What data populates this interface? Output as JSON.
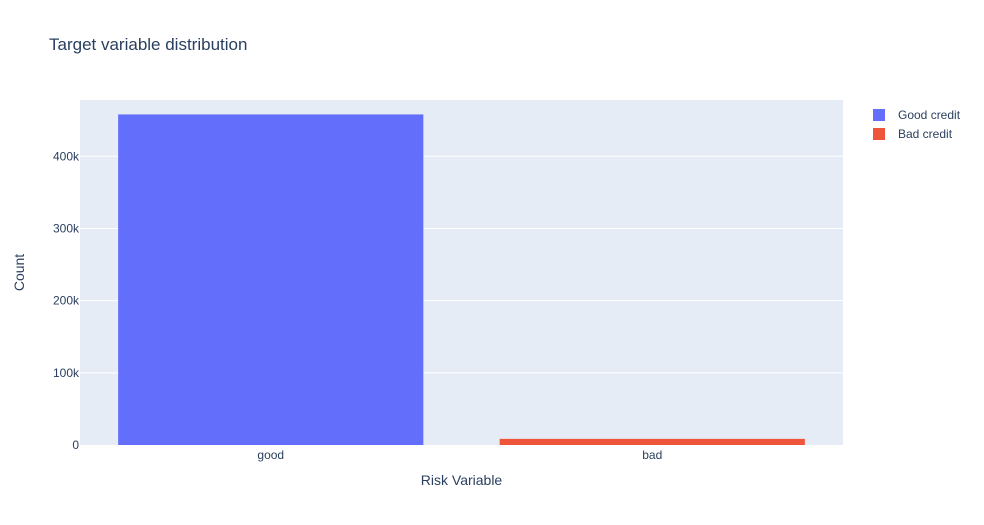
{
  "chart_data": {
    "type": "bar",
    "title": "Target variable distribution",
    "xlabel": "Risk Variable",
    "ylabel": "Count",
    "categories": [
      "good",
      "bad"
    ],
    "series": [
      {
        "name": "Good credit",
        "category": "good",
        "value": 458000,
        "color": "#636efa"
      },
      {
        "name": "Bad credit",
        "category": "bad",
        "value": 8500,
        "color": "#ef553b"
      }
    ],
    "ylim": [
      0,
      478000
    ],
    "yticks": [
      {
        "value": 0,
        "label": "0"
      },
      {
        "value": 100000,
        "label": "100k"
      },
      {
        "value": 200000,
        "label": "200k"
      },
      {
        "value": 300000,
        "label": "300k"
      },
      {
        "value": 400000,
        "label": "400k"
      }
    ],
    "grid": true,
    "legend_position": "top-right",
    "plot_background": "#e5ecf6"
  }
}
